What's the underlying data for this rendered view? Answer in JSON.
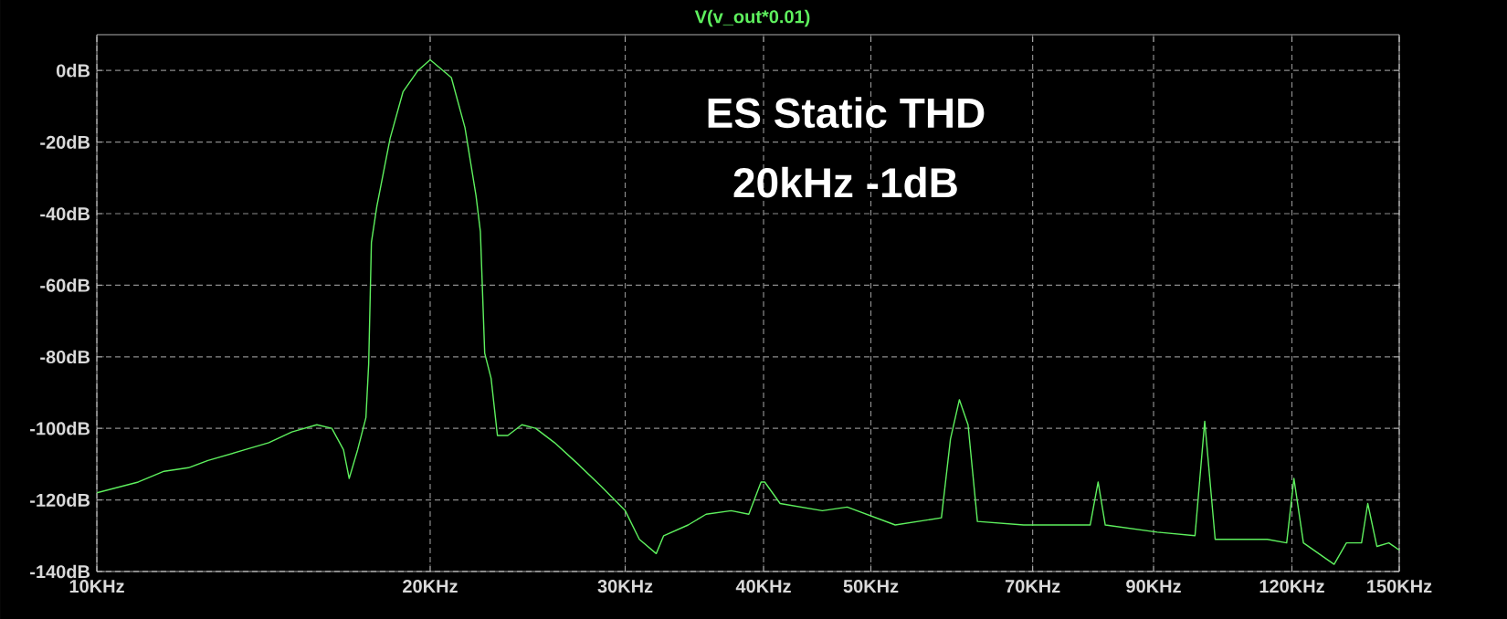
{
  "chart_data": {
    "type": "line",
    "title": "ES Static THD",
    "subtitle": "20kHz -1dB",
    "log": "x",
    "grid": true,
    "legend": "top",
    "xlim": [
      10,
      150
    ],
    "ylim": [
      -140,
      10
    ],
    "xticks": [
      {
        "value": 10,
        "label": "10KHz"
      },
      {
        "value": 20,
        "label": "20KHz"
      },
      {
        "value": 30,
        "label": "30KHz"
      },
      {
        "value": 40,
        "label": "40KHz"
      },
      {
        "value": 50,
        "label": "50KHz"
      },
      {
        "value": 70,
        "label": "70KHz"
      },
      {
        "value": 90,
        "label": "90KHz"
      },
      {
        "value": 120,
        "label": "120KHz"
      },
      {
        "value": 150,
        "label": "150KHz"
      }
    ],
    "yticks": [
      {
        "value": 0,
        "label": "0dB"
      },
      {
        "value": -20,
        "label": "-20dB"
      },
      {
        "value": -40,
        "label": "-40dB"
      },
      {
        "value": -60,
        "label": "-60dB"
      },
      {
        "value": -80,
        "label": "-80dB"
      },
      {
        "value": -100,
        "label": "-100dB"
      },
      {
        "value": -120,
        "label": "-120dB"
      },
      {
        "value": -140,
        "label": "-140dB"
      }
    ],
    "series": [
      {
        "name": "V(v_out*0.01)",
        "color": "#5ef05e",
        "x": [
          10,
          10.9,
          11.5,
          12.1,
          12.6,
          13.6,
          14.3,
          15.0,
          15.8,
          16.3,
          16.7,
          16.9,
          17.2,
          17.5,
          17.6,
          17.7,
          17.9,
          18.4,
          18.9,
          19.5,
          20.0,
          20.9,
          21.5,
          22.0,
          22.2,
          22.4,
          22.7,
          23.0,
          23.5,
          24.2,
          24.9,
          25.9,
          27.2,
          28.5,
          30.0,
          30.9,
          32.0,
          32.5,
          34.2,
          35.5,
          37.4,
          38.8,
          39.8,
          40.1,
          41.4,
          45.2,
          47.6,
          52.6,
          57.9,
          59.0,
          60.1,
          61.2,
          62.4,
          68.7,
          78.9,
          80.2,
          81.4,
          90.7,
          98.1,
          100.1,
          102.3,
          114.0,
          118.7,
          120.5,
          122.9,
          131.0,
          134.4,
          138.7,
          140.5,
          143.2,
          146.8,
          150
        ],
        "values": [
          -118,
          -115,
          -112,
          -111,
          -109,
          -106,
          -104,
          -101,
          -99,
          -100,
          -106,
          -114,
          -106,
          -97,
          -82,
          -48,
          -38,
          -19,
          -6,
          0,
          3,
          -2,
          -16,
          -35,
          -45,
          -79,
          -86,
          -102,
          -102,
          -99,
          -100,
          -104,
          -110,
          -116,
          -123,
          -131,
          -135,
          -130,
          -127,
          -124,
          -123,
          -124,
          -115,
          -115,
          -121,
          -123,
          -122,
          -127,
          -125,
          -103,
          -92,
          -99,
          -126,
          -127,
          -127,
          -115,
          -127,
          -129,
          -130,
          -98,
          -131,
          -131,
          -132,
          -114,
          -132,
          -138,
          -132,
          -132,
          -121,
          -133,
          -132,
          -134
        ]
      }
    ]
  }
}
